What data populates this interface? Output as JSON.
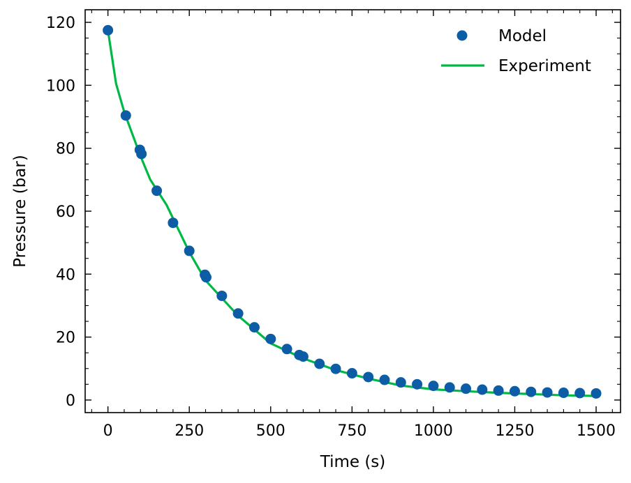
{
  "chart_data": {
    "type": "scatter",
    "xlabel": "Time (s)",
    "ylabel": "Pressure (bar)",
    "xlim": [
      -70,
      1575
    ],
    "ylim": [
      -4,
      124
    ],
    "xticks": [
      0,
      250,
      500,
      750,
      1000,
      1250,
      1500
    ],
    "yticks": [
      0,
      20,
      40,
      60,
      80,
      100,
      120
    ],
    "grid": false,
    "legend_position": "top-right",
    "series": [
      {
        "name": "Model",
        "kind": "scatter",
        "color": "#0C5DA5",
        "x": [
          0,
          55,
          98,
          103,
          150,
          200,
          250,
          298,
          302,
          350,
          400,
          450,
          500,
          550,
          588,
          600,
          650,
          700,
          750,
          800,
          850,
          900,
          950,
          1000,
          1050,
          1100,
          1150,
          1200,
          1250,
          1300,
          1350,
          1400,
          1450,
          1500
        ],
        "y": [
          117.5,
          90.4,
          79.5,
          78.2,
          66.5,
          56.3,
          47.4,
          39.8,
          39.0,
          33.1,
          27.5,
          23.1,
          19.4,
          16.2,
          14.3,
          13.8,
          11.5,
          9.9,
          8.5,
          7.3,
          6.4,
          5.6,
          5.0,
          4.5,
          4.0,
          3.6,
          3.3,
          3.0,
          2.8,
          2.6,
          2.4,
          2.3,
          2.2,
          2.1
        ]
      },
      {
        "name": "Experiment",
        "kind": "line",
        "color": "#00B945",
        "x": [
          0,
          25,
          50,
          100,
          130,
          180,
          250,
          300,
          400,
          500,
          600,
          700,
          800,
          900,
          1000,
          1100,
          1200,
          1300,
          1400,
          1500
        ],
        "y": [
          117.5,
          100.5,
          91.5,
          77.5,
          70.0,
          62.0,
          47.0,
          38.0,
          26.8,
          18.0,
          13.2,
          9.5,
          6.8,
          4.6,
          3.4,
          2.8,
          2.3,
          1.9,
          1.5,
          1.3
        ]
      }
    ]
  }
}
